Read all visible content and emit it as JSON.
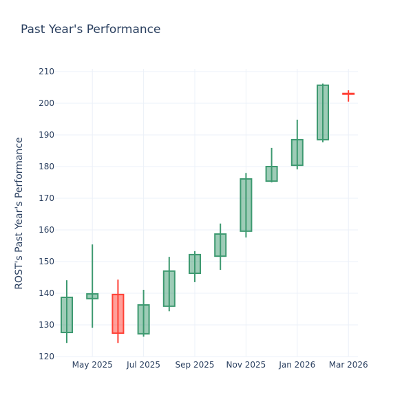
{
  "chart_data": {
    "type": "candlestick",
    "title": "Past Year's Performance",
    "xlabel": "",
    "ylabel": "ROST's Past Year's Performance",
    "ylim": [
      120,
      210
    ],
    "yticks": [
      120,
      130,
      140,
      150,
      160,
      170,
      180,
      190,
      200,
      210
    ],
    "xtick_labels": [
      "May 2025",
      "Jul 2025",
      "Sep 2025",
      "Nov 2025",
      "Jan 2026",
      "Mar 2026"
    ],
    "grid": true,
    "colors": {
      "increasing": "#3D9970",
      "decreasing": "#FF4136"
    },
    "candles": [
      {
        "month": "Apr 2025",
        "open": 127.6,
        "high": 144.1,
        "low": 124.3,
        "close": 138.7
      },
      {
        "month": "May 2025",
        "open": 138.3,
        "high": 155.4,
        "low": 129.1,
        "close": 139.8
      },
      {
        "month": "Jun 2025",
        "open": 139.6,
        "high": 144.3,
        "low": 124.3,
        "close": 127.4
      },
      {
        "month": "Jul 2025",
        "open": 127.2,
        "high": 141.1,
        "low": 126.3,
        "close": 136.3
      },
      {
        "month": "Aug 2025",
        "open": 135.9,
        "high": 151.5,
        "low": 134.3,
        "close": 147.0
      },
      {
        "month": "Sep 2025",
        "open": 146.3,
        "high": 153.3,
        "low": 143.5,
        "close": 152.2
      },
      {
        "month": "Oct 2025",
        "open": 151.7,
        "high": 162.0,
        "low": 147.4,
        "close": 158.7
      },
      {
        "month": "Nov 2025",
        "open": 159.6,
        "high": 178.0,
        "low": 157.6,
        "close": 176.1
      },
      {
        "month": "Dec 2025",
        "open": 175.4,
        "high": 185.9,
        "low": 175.0,
        "close": 180.0
      },
      {
        "month": "Jan 2026",
        "open": 180.4,
        "high": 194.8,
        "low": 179.1,
        "close": 188.5
      },
      {
        "month": "Feb 2026",
        "open": 188.5,
        "high": 206.2,
        "low": 187.7,
        "close": 205.7
      },
      {
        "month": "Mar 2026",
        "open": 203.1,
        "high": 204.1,
        "low": 200.5,
        "close": 202.9
      }
    ]
  }
}
